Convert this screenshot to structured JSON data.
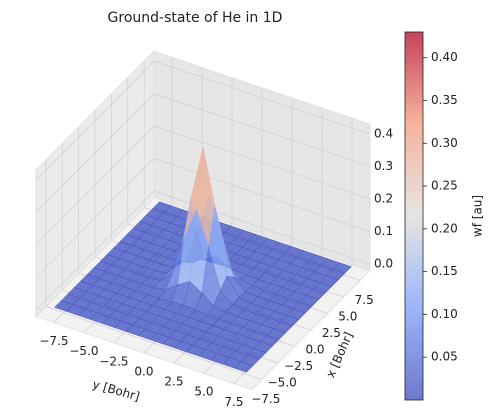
{
  "chart_data": {
    "type": "surface",
    "title": "Ground-state of He in 1D",
    "xlabel": "y [Bohr]",
    "ylabel": "x [Bohr]",
    "colorbar_label": "wf [au]",
    "x": [
      -8,
      -7,
      -6,
      -5,
      -4,
      -3,
      -2,
      -1,
      0,
      1,
      2,
      3,
      4,
      5,
      6,
      7,
      8
    ],
    "y": [
      -8,
      -7,
      -6,
      -5,
      -4,
      -3,
      -2,
      -1,
      0,
      1,
      2,
      3,
      4,
      5,
      6,
      7,
      8
    ],
    "z": [
      [
        0,
        0,
        0,
        0,
        0,
        0,
        0,
        0,
        0,
        0,
        0,
        0,
        0,
        0,
        0,
        0,
        0
      ],
      [
        0,
        0,
        0,
        0,
        0,
        0,
        0,
        0,
        0,
        0,
        0,
        0,
        0,
        0,
        0,
        0,
        0
      ],
      [
        0,
        0,
        0,
        0,
        0,
        0,
        0,
        0,
        0,
        0,
        0,
        0,
        0,
        0,
        0,
        0,
        0
      ],
      [
        0,
        0,
        0,
        0,
        0,
        0,
        0,
        0,
        0,
        0,
        0,
        0,
        0,
        0,
        0,
        0,
        0
      ],
      [
        0,
        0,
        0,
        0,
        0,
        0,
        0,
        0,
        0,
        0,
        0,
        0,
        0,
        0,
        0,
        0,
        0
      ],
      [
        0,
        0,
        0,
        0,
        0,
        0,
        0.001,
        0.003,
        0.005,
        0.003,
        0.001,
        0,
        0,
        0,
        0,
        0,
        0
      ],
      [
        0,
        0,
        0,
        0,
        0,
        0.001,
        0.008,
        0.035,
        0.058,
        0.035,
        0.008,
        0.001,
        0,
        0,
        0,
        0,
        0
      ],
      [
        0,
        0,
        0,
        0,
        0,
        0.003,
        0.035,
        0.158,
        0.261,
        0.158,
        0.035,
        0.003,
        0,
        0,
        0,
        0,
        0
      ],
      [
        0,
        0,
        0,
        0,
        0,
        0.005,
        0.058,
        0.261,
        0.43,
        0.261,
        0.058,
        0.005,
        0,
        0,
        0,
        0,
        0
      ],
      [
        0,
        0,
        0,
        0,
        0,
        0.003,
        0.035,
        0.158,
        0.261,
        0.158,
        0.035,
        0.003,
        0,
        0,
        0,
        0,
        0
      ],
      [
        0,
        0,
        0,
        0,
        0,
        0.001,
        0.008,
        0.035,
        0.058,
        0.035,
        0.008,
        0.001,
        0,
        0,
        0,
        0,
        0
      ],
      [
        0,
        0,
        0,
        0,
        0,
        0,
        0.001,
        0.003,
        0.005,
        0.003,
        0.001,
        0,
        0,
        0,
        0,
        0,
        0
      ],
      [
        0,
        0,
        0,
        0,
        0,
        0,
        0,
        0,
        0,
        0,
        0,
        0,
        0,
        0,
        0,
        0,
        0
      ],
      [
        0,
        0,
        0,
        0,
        0,
        0,
        0,
        0,
        0,
        0,
        0,
        0,
        0,
        0,
        0,
        0,
        0
      ],
      [
        0,
        0,
        0,
        0,
        0,
        0,
        0,
        0,
        0,
        0,
        0,
        0,
        0,
        0,
        0,
        0,
        0
      ],
      [
        0,
        0,
        0,
        0,
        0,
        0,
        0,
        0,
        0,
        0,
        0,
        0,
        0,
        0,
        0,
        0,
        0
      ],
      [
        0,
        0,
        0,
        0,
        0,
        0,
        0,
        0,
        0,
        0,
        0,
        0,
        0,
        0,
        0,
        0,
        0
      ]
    ],
    "xlim": [
      -9,
      9
    ],
    "ylim": [
      -9,
      9
    ],
    "zlim": [
      -0.02,
      0.43
    ],
    "xticks": [
      {
        "value": -7.5,
        "label": "−7.5"
      },
      {
        "value": -5,
        "label": "−5.0"
      },
      {
        "value": -2.5,
        "label": "−2.5"
      },
      {
        "value": 0,
        "label": "0.0"
      },
      2.5,
      {
        "value": 5,
        "label": "5.0"
      },
      7.5
    ],
    "yticks": [
      {
        "value": -7.5,
        "label": "−7.5"
      },
      {
        "value": -5,
        "label": "−5.0"
      },
      {
        "value": -2.5,
        "label": "−2.5"
      },
      {
        "value": 0,
        "label": "0.0"
      },
      2.5,
      {
        "value": 5,
        "label": "5.0"
      },
      7.5
    ],
    "zticks": [
      {
        "value": 0,
        "label": "0.0"
      },
      0.1,
      {
        "value": 0.2,
        "label": "0.2"
      },
      0.3,
      0.4
    ],
    "clim": [
      0,
      0.43
    ],
    "cticks": [
      0.05,
      {
        "value": 0.1,
        "label": "0.10"
      },
      0.15,
      {
        "value": 0.2,
        "label": "0.20"
      },
      0.25,
      {
        "value": 0.3,
        "label": "0.30"
      },
      0.35,
      {
        "value": 0.4,
        "label": "0.40"
      }
    ],
    "colormap": "coolwarm",
    "alpha": 0.75,
    "grid": true
  }
}
